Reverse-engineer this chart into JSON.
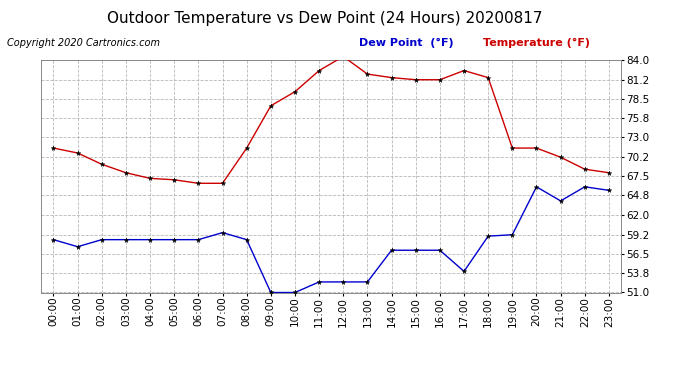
{
  "title": "Outdoor Temperature vs Dew Point (24 Hours) 20200817",
  "copyright": "Copyright 2020 Cartronics.com",
  "legend_dew": "Dew Point  (°F)",
  "legend_temp": "Temperature (°F)",
  "hours": [
    "00:00",
    "01:00",
    "02:00",
    "03:00",
    "04:00",
    "05:00",
    "06:00",
    "07:00",
    "08:00",
    "09:00",
    "10:00",
    "11:00",
    "12:00",
    "13:00",
    "14:00",
    "15:00",
    "16:00",
    "17:00",
    "18:00",
    "19:00",
    "20:00",
    "21:00",
    "22:00",
    "23:00"
  ],
  "temperature": [
    71.5,
    70.8,
    69.2,
    68.0,
    67.2,
    67.0,
    66.5,
    66.5,
    71.5,
    77.5,
    79.5,
    82.5,
    84.5,
    82.0,
    81.5,
    81.2,
    81.2,
    82.5,
    81.5,
    71.5,
    71.5,
    70.2,
    68.5,
    68.0
  ],
  "dew_point": [
    58.5,
    57.5,
    58.5,
    58.5,
    58.5,
    58.5,
    58.5,
    59.5,
    58.5,
    51.0,
    51.0,
    52.5,
    52.5,
    52.5,
    57.0,
    57.0,
    57.0,
    54.0,
    59.0,
    59.2,
    66.0,
    64.0,
    66.0,
    65.5
  ],
  "ylim": [
    51.0,
    84.0
  ],
  "yticks": [
    51.0,
    53.8,
    56.5,
    59.2,
    62.0,
    64.8,
    67.5,
    70.2,
    73.0,
    75.8,
    78.5,
    81.2,
    84.0
  ],
  "temp_color": "#cc0000",
  "dew_color": "#0000cc",
  "grid_color": "#b0b0b0",
  "bg_color": "#ffffff",
  "title_fontsize": 11,
  "tick_fontsize": 7.5,
  "copyright_fontsize": 7,
  "legend_fontsize": 8
}
